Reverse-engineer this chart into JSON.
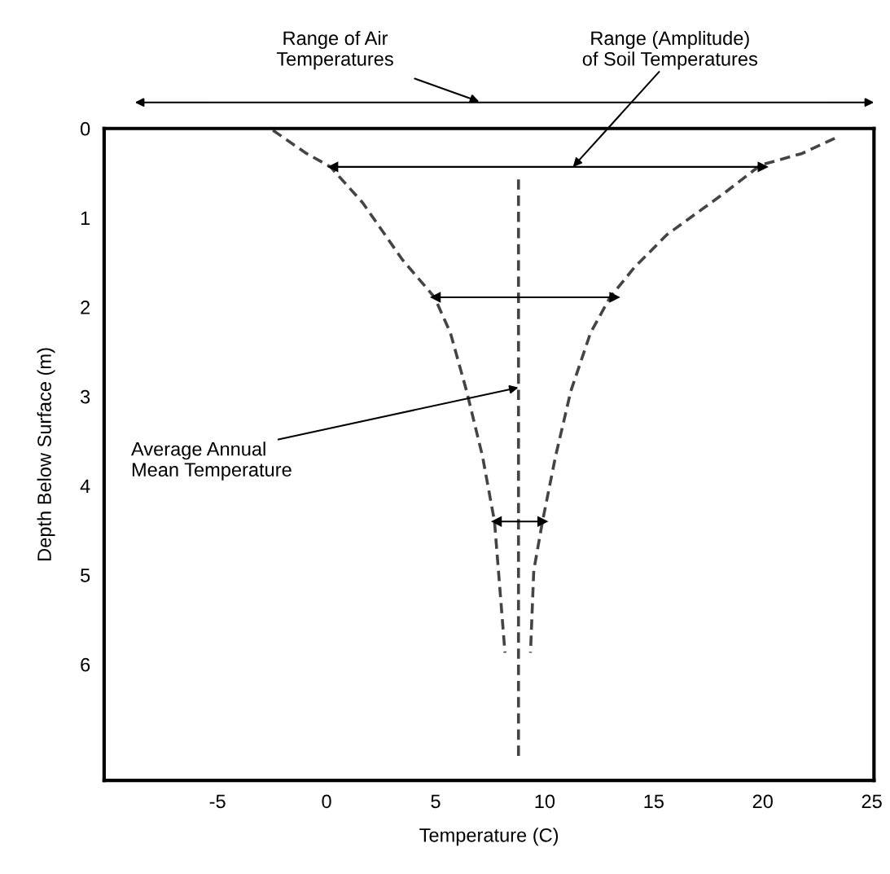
{
  "chart_data": {
    "type": "line",
    "xlabel": "Temperature (C)",
    "ylabel": "Depth Below Surface (m)",
    "xlim": [
      -10.2,
      25.1
    ],
    "xticks": [
      -5,
      0,
      5,
      10,
      15,
      20,
      25
    ],
    "ylim": [
      7.3,
      0
    ],
    "yticks": [
      0,
      1,
      2,
      3,
      4,
      5,
      6
    ],
    "grid": false,
    "legend": false,
    "series": [
      {
        "color": "#444444",
        "line_style": "dashed",
        "x": [
          -2.46,
          -0.92,
          0.18,
          1.65,
          3.48,
          4.95,
          5.68,
          6.42,
          7.15,
          7.7,
          7.88,
          8.18
        ],
        "values": [
          0.02,
          0.28,
          0.43,
          0.83,
          1.47,
          1.89,
          2.29,
          2.94,
          3.67,
          4.4,
          4.95,
          5.87
        ]
      },
      {
        "color": "#444444",
        "line_style": "dashed",
        "x": [
          23.3,
          21.8,
          19.9,
          18.2,
          15.6,
          14.1,
          13.0,
          12.1,
          11.2,
          10.5,
          9.9,
          9.5,
          9.35
        ],
        "values": [
          0.11,
          0.28,
          0.41,
          0.73,
          1.19,
          1.56,
          1.89,
          2.29,
          2.94,
          3.67,
          4.4,
          4.95,
          5.87
        ]
      },
      {
        "color": "#444444",
        "line_style": "dashed",
        "x": [
          8.8,
          8.8
        ],
        "values": [
          0.57,
          7.06
        ]
      },
      {
        "color": "#000000",
        "line_style": "solid",
        "marker": "triangle",
        "x": [
          0.3,
          20.0
        ],
        "values": [
          0.43,
          0.43
        ]
      },
      {
        "color": "#000000",
        "line_style": "solid",
        "marker": "triangle",
        "x": [
          5.0,
          13.2
        ],
        "values": [
          1.89,
          1.89
        ]
      },
      {
        "color": "#000000",
        "line_style": "solid",
        "marker": "triangle",
        "x": [
          7.8,
          9.9
        ],
        "values": [
          4.4,
          4.4
        ]
      }
    ],
    "annotations": [
      "Range of Air\nTemperatures",
      {
        "text": "Range (Amplitude)\nof Soil Temperatures",
        "x": 11.3,
        "y": 0.43
      },
      {
        "text": "Average Annual\nMean Temperature",
        "x": 8.8,
        "y": 2.9
      }
    ]
  }
}
